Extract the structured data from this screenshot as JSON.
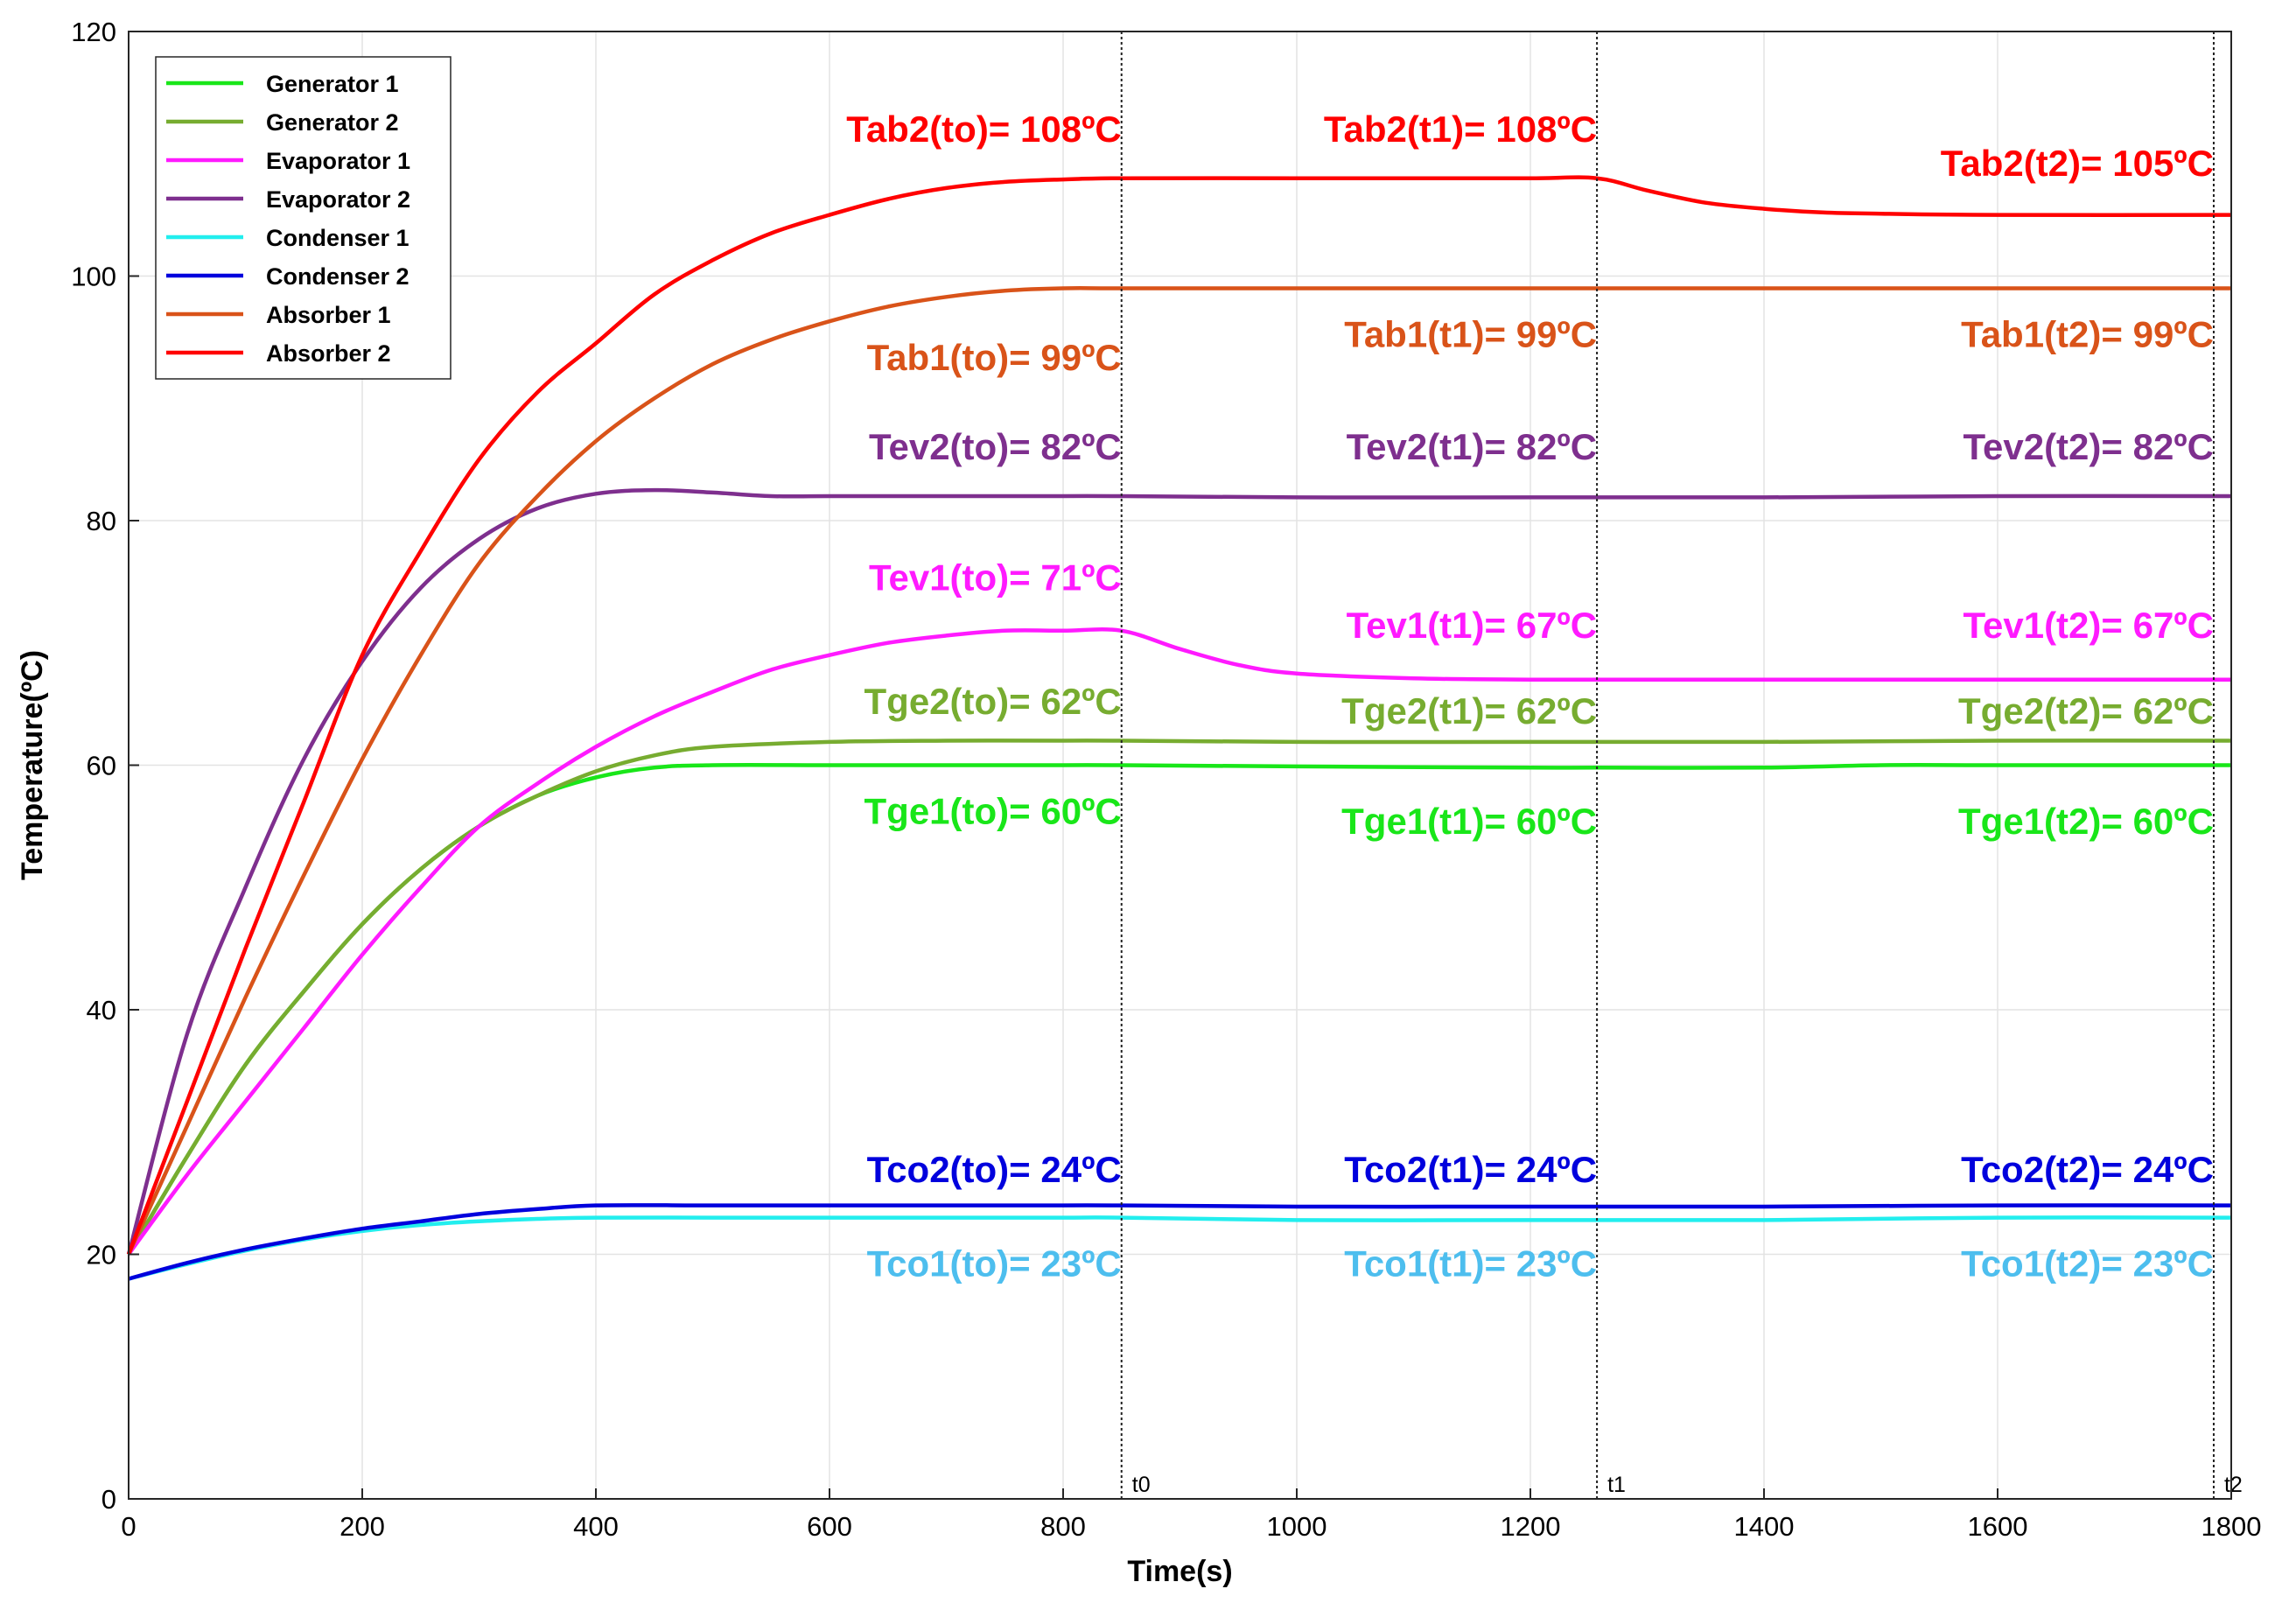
{
  "chart_data": {
    "type": "line",
    "xlabel": "Time(s)",
    "ylabel": "Temperature(ºC)",
    "xlim": [
      0,
      1800
    ],
    "ylim": [
      0,
      120
    ],
    "xticks": [
      0,
      200,
      400,
      600,
      800,
      1000,
      1200,
      1400,
      1600,
      1800
    ],
    "yticks": [
      0,
      20,
      40,
      60,
      80,
      100,
      120
    ],
    "grid": true,
    "legend_position": "top-left",
    "series": [
      {
        "name": "Generator 1",
        "color": "#19e619",
        "x": [
          0,
          50,
          100,
          150,
          200,
          250,
          300,
          350,
          400,
          450,
          500,
          600,
          700,
          800,
          850,
          1000,
          1200,
          1257,
          1400,
          1500,
          1600,
          1800
        ],
        "y": [
          20,
          28,
          35.5,
          41.5,
          47,
          51.5,
          55,
          57.5,
          59,
          59.8,
          60,
          60,
          60,
          60,
          60,
          59.9,
          59.8,
          59.8,
          59.8,
          60,
          60,
          60
        ]
      },
      {
        "name": "Generator 2",
        "color": "#77ac30",
        "x": [
          0,
          50,
          100,
          150,
          200,
          250,
          300,
          350,
          400,
          450,
          500,
          600,
          700,
          800,
          850,
          1000,
          1200,
          1257,
          1400,
          1600,
          1800
        ],
        "y": [
          20,
          28,
          35.5,
          41.5,
          47,
          51.5,
          55,
          57.5,
          59.5,
          60.8,
          61.5,
          61.9,
          62,
          62,
          62,
          61.9,
          61.9,
          61.9,
          61.9,
          62,
          62
        ]
      },
      {
        "name": "Evaporator 1",
        "color": "#ff1aff",
        "x": [
          0,
          50,
          100,
          150,
          200,
          250,
          300,
          350,
          400,
          450,
          500,
          550,
          600,
          650,
          700,
          750,
          800,
          850,
          900,
          950,
          1000,
          1100,
          1200,
          1257,
          1400,
          1600,
          1800
        ],
        "y": [
          20,
          26.5,
          32.5,
          38.5,
          44.5,
          50,
          55,
          58.5,
          61.5,
          64,
          66,
          67.8,
          69,
          70,
          70.6,
          71,
          71,
          71,
          69.5,
          68.2,
          67.5,
          67.1,
          67,
          67,
          67,
          67,
          67
        ]
      },
      {
        "name": "Evaporator 2",
        "color": "#7e2f8e",
        "x": [
          0,
          50,
          100,
          150,
          200,
          250,
          300,
          350,
          400,
          450,
          500,
          550,
          600,
          700,
          800,
          850,
          1000,
          1200,
          1257,
          1400,
          1600,
          1800
        ],
        "y": [
          20,
          38,
          50,
          60.5,
          68.5,
          74.5,
          78.5,
          81,
          82.2,
          82.5,
          82.3,
          82,
          82,
          82,
          82,
          82,
          81.9,
          81.9,
          81.9,
          81.9,
          82,
          82
        ]
      },
      {
        "name": "Condenser 1",
        "color": "#22eeee",
        "x": [
          0,
          50,
          100,
          150,
          200,
          250,
          300,
          350,
          400,
          500,
          600,
          700,
          800,
          850,
          1000,
          1200,
          1257,
          1400,
          1600,
          1800
        ],
        "y": [
          18,
          19.2,
          20.3,
          21.2,
          21.9,
          22.4,
          22.7,
          22.9,
          23,
          23,
          23,
          23,
          23,
          23,
          22.8,
          22.8,
          22.8,
          22.8,
          23,
          23
        ]
      },
      {
        "name": "Condenser 2",
        "color": "#0000dd",
        "x": [
          0,
          50,
          100,
          150,
          200,
          250,
          300,
          350,
          400,
          500,
          600,
          700,
          800,
          850,
          1000,
          1200,
          1257,
          1400,
          1600,
          1800
        ],
        "y": [
          18,
          19.3,
          20.4,
          21.3,
          22.1,
          22.7,
          23.3,
          23.7,
          24,
          24,
          24,
          24,
          24,
          24,
          23.9,
          23.9,
          23.9,
          23.9,
          24,
          24
        ]
      },
      {
        "name": "Absorber 1",
        "color": "#d95319",
        "x": [
          0,
          50,
          100,
          150,
          200,
          250,
          300,
          350,
          400,
          450,
          500,
          550,
          600,
          650,
          700,
          750,
          800,
          850,
          1000,
          1200,
          1257,
          1400,
          1600,
          1800
        ],
        "y": [
          20,
          30.5,
          41,
          51,
          60.5,
          69,
          76.5,
          82,
          86.5,
          90,
          92.8,
          94.8,
          96.3,
          97.5,
          98.3,
          98.8,
          99,
          99,
          99,
          99,
          99,
          99,
          99,
          99
        ]
      },
      {
        "name": "Absorber 2",
        "color": "#ff0000",
        "x": [
          0,
          50,
          100,
          150,
          200,
          250,
          300,
          350,
          400,
          450,
          500,
          550,
          600,
          650,
          700,
          750,
          800,
          850,
          1000,
          1100,
          1200,
          1257,
          1300,
          1350,
          1400,
          1450,
          1500,
          1600,
          1800
        ],
        "y": [
          20,
          32.5,
          45,
          57,
          69,
          77.5,
          85,
          90.5,
          94.5,
          98.5,
          101.3,
          103.5,
          105,
          106.3,
          107.2,
          107.7,
          107.9,
          108,
          108,
          108,
          108,
          108,
          107,
          106,
          105.5,
          105.2,
          105.1,
          105,
          105
        ]
      }
    ],
    "vlines": [
      {
        "x": 850,
        "label": "t0"
      },
      {
        "x": 1257,
        "label": "t1"
      },
      {
        "x": 1785,
        "label": "t2"
      }
    ],
    "annotations": [
      {
        "text": "Tab2(to)= 108ºC",
        "x": 850,
        "y": 111,
        "color": "#ff0000"
      },
      {
        "text": "Tab2(t1)= 108ºC",
        "x": 1257,
        "y": 111,
        "color": "#ff0000"
      },
      {
        "text": "Tab2(t2)= 105ºC",
        "x": 1785,
        "y": 108.2,
        "color": "#ff0000"
      },
      {
        "text": "Tab1(to)= 99ºC",
        "x": 850,
        "y": 92.3,
        "color": "#d95319"
      },
      {
        "text": "Tab1(t1)= 99ºC",
        "x": 1257,
        "y": 94.2,
        "color": "#d95319"
      },
      {
        "text": "Tab1(t2)= 99ºC",
        "x": 1785,
        "y": 94.2,
        "color": "#d95319"
      },
      {
        "text": "Tev2(to)= 82ºC",
        "x": 850,
        "y": 85,
        "color": "#7e2f8e"
      },
      {
        "text": "Tev2(t1)= 82ºC",
        "x": 1257,
        "y": 85,
        "color": "#7e2f8e"
      },
      {
        "text": "Tev2(t2)= 82ºC",
        "x": 1785,
        "y": 85,
        "color": "#7e2f8e"
      },
      {
        "text": "Tev1(to)= 71ºC",
        "x": 850,
        "y": 74.3,
        "color": "#ff1aff"
      },
      {
        "text": "Tev1(t1)= 67ºC",
        "x": 1257,
        "y": 70.4,
        "color": "#ff1aff"
      },
      {
        "text": "Tev1(t2)= 67ºC",
        "x": 1785,
        "y": 70.4,
        "color": "#ff1aff"
      },
      {
        "text": "Tge2(to)= 62ºC",
        "x": 850,
        "y": 64.2,
        "color": "#77ac30"
      },
      {
        "text": "Tge2(t1)= 62ºC",
        "x": 1257,
        "y": 63.4,
        "color": "#77ac30"
      },
      {
        "text": "Tge2(t2)= 62ºC",
        "x": 1785,
        "y": 63.4,
        "color": "#77ac30"
      },
      {
        "text": "Tge1(to)= 60ºC",
        "x": 850,
        "y": 55.2,
        "color": "#19e619"
      },
      {
        "text": "Tge1(t1)= 60ºC",
        "x": 1257,
        "y": 54.4,
        "color": "#19e619"
      },
      {
        "text": "Tge1(t2)= 60ºC",
        "x": 1785,
        "y": 54.4,
        "color": "#19e619"
      },
      {
        "text": "Tco2(to)= 24ºC",
        "x": 850,
        "y": 25.9,
        "color": "#0000dd"
      },
      {
        "text": "Tco2(t1)= 24ºC",
        "x": 1257,
        "y": 25.9,
        "color": "#0000dd"
      },
      {
        "text": "Tco2(t2)= 24ºC",
        "x": 1785,
        "y": 25.9,
        "color": "#0000dd"
      },
      {
        "text": "Tco1(to)= 23ºC",
        "x": 850,
        "y": 18.2,
        "color": "#4dbeee"
      },
      {
        "text": "Tco1(t1)= 23ºC",
        "x": 1257,
        "y": 18.2,
        "color": "#4dbeee"
      },
      {
        "text": "Tco1(t2)= 23ºC",
        "x": 1785,
        "y": 18.2,
        "color": "#4dbeee"
      }
    ]
  }
}
